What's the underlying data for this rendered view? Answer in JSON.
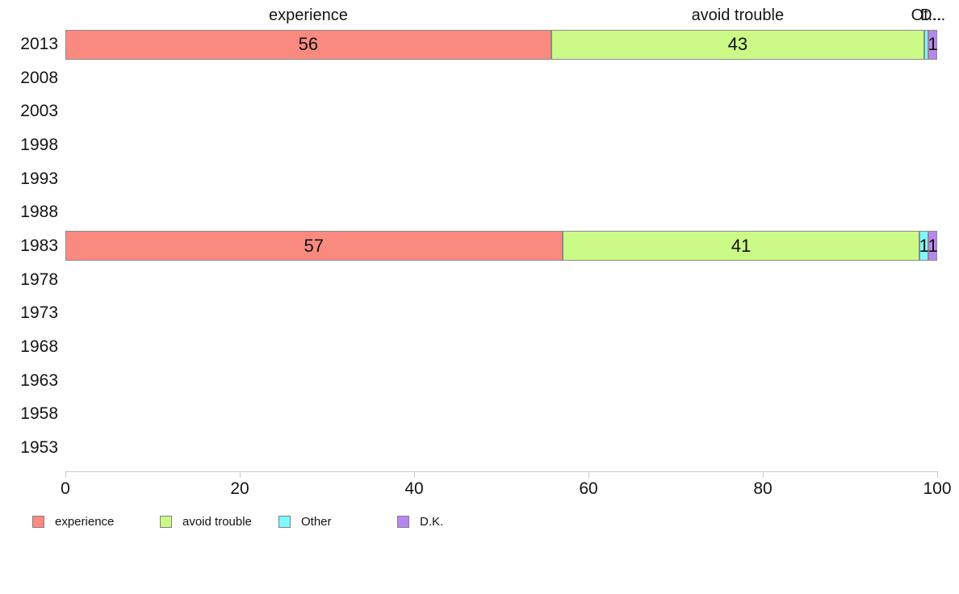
{
  "chart_data": {
    "type": "bar",
    "orientation": "horizontal",
    "stacked": true,
    "title": "",
    "xlabel": "",
    "ylabel": "",
    "xlim": [
      0,
      100
    ],
    "xticks": [
      "0",
      "20",
      "40",
      "60",
      "80",
      "100"
    ],
    "xtick_values": [
      0,
      20,
      40,
      60,
      80,
      100
    ],
    "grid": false,
    "legend_position": "bottom",
    "categories": [
      "2013",
      "2008",
      "2003",
      "1998",
      "1993",
      "1988",
      "1983",
      "1978",
      "1973",
      "1968",
      "1963",
      "1958",
      "1953"
    ],
    "series": [
      {
        "name": "experience",
        "color": "#FA8A80",
        "values": {
          "2013": 56,
          "1983": 57
        }
      },
      {
        "name": "avoid trouble",
        "color": "#CCFA87",
        "values": {
          "2013": 43,
          "1983": 41
        }
      },
      {
        "name": "Other",
        "color": "#7FF9FC",
        "values": {
          "2013": 0.5,
          "1983": 1
        }
      },
      {
        "name": "D.K.",
        "color": "#B787F0",
        "values": {
          "2013": 1,
          "1983": 1
        }
      }
    ],
    "bar_labels": {
      "2013": [
        "56",
        "43",
        "",
        "1"
      ],
      "1983": [
        "57",
        "41",
        "1",
        "1"
      ]
    },
    "column_headers": [
      "experience",
      "avoid trouble",
      "Ot...",
      "D..."
    ],
    "legend": [
      {
        "label": "experience",
        "color": "#FA8A80"
      },
      {
        "label": "avoid trouble",
        "color": "#CCFA87"
      },
      {
        "label": "Other",
        "color": "#7FF9FC"
      },
      {
        "label": "D.K.",
        "color": "#B787F0"
      }
    ],
    "colors": {
      "bar_border": "#8A8A8A",
      "axis": "#C9C9C9",
      "text": "#141414"
    }
  }
}
